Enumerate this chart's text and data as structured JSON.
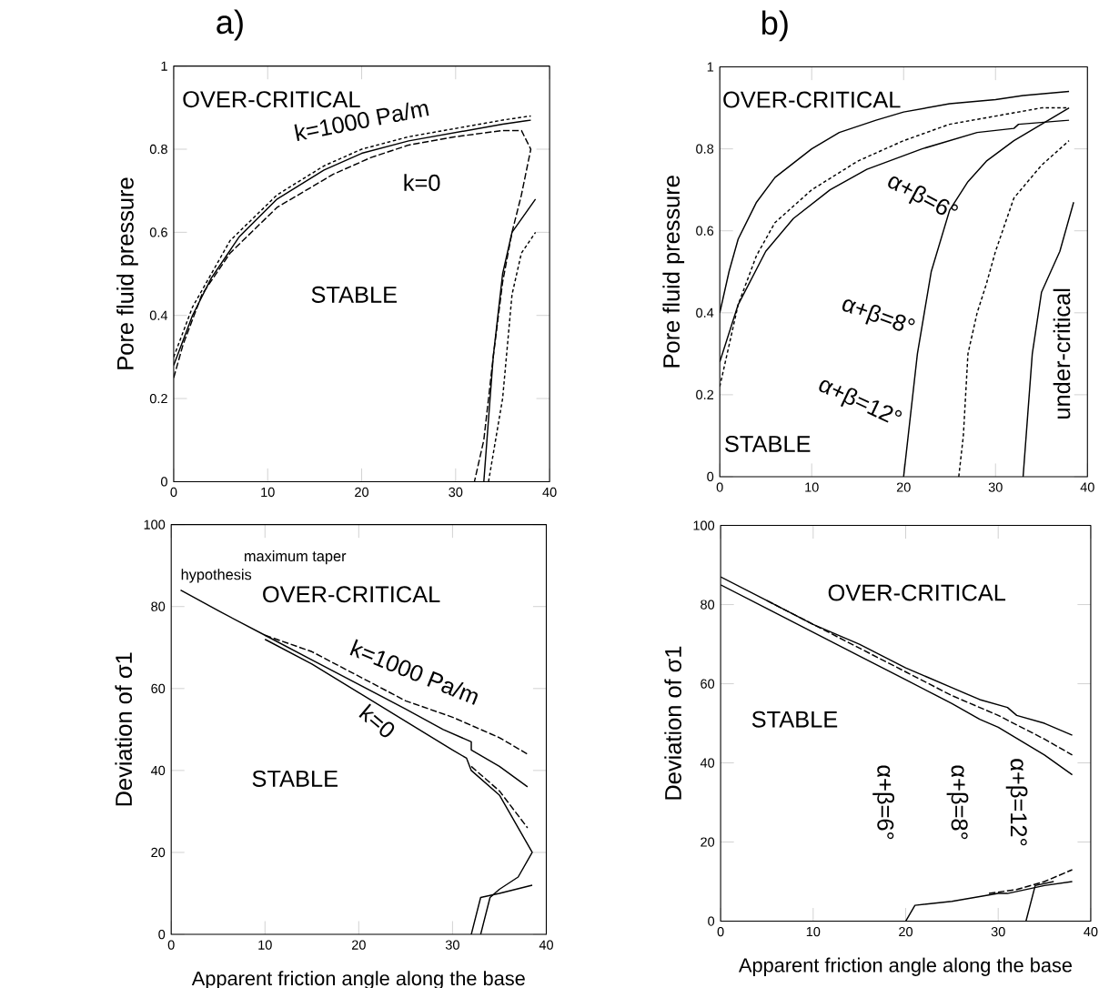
{
  "chart_data": [
    {
      "type": "line",
      "title": "a)",
      "ylabel": "Pore fluid pressure",
      "xlim": [
        0,
        40
      ],
      "ylim": [
        0,
        1
      ],
      "xticks": [
        0,
        10,
        20,
        30,
        40
      ],
      "yticks": [
        0,
        0.2,
        0.4,
        0.6,
        0.8,
        1
      ],
      "series": [
        {
          "color": "#000000",
          "line_style": "solid",
          "x": [
            0,
            2,
            4,
            7,
            11,
            16,
            20,
            25,
            30,
            35,
            38
          ],
          "values": [
            0.28,
            0.4,
            0.49,
            0.59,
            0.68,
            0.75,
            0.79,
            0.82,
            0.84,
            0.86,
            0.87
          ]
        },
        {
          "color": "#000000",
          "line_style": "dotted",
          "x": [
            0,
            2,
            4,
            6,
            11,
            16,
            20,
            25,
            30,
            35,
            38
          ],
          "values": [
            0.3,
            0.42,
            0.5,
            0.58,
            0.69,
            0.76,
            0.8,
            0.83,
            0.85,
            0.87,
            0.88
          ]
        },
        {
          "color": "#000000",
          "line_style": "dashed",
          "x": [
            0,
            1,
            3,
            6,
            11,
            17,
            21,
            25,
            30,
            35,
            37,
            38,
            37,
            36,
            35,
            34,
            33,
            32
          ],
          "values": [
            0.25,
            0.33,
            0.45,
            0.55,
            0.66,
            0.74,
            0.78,
            0.81,
            0.83,
            0.845,
            0.845,
            0.8,
            0.69,
            0.6,
            0.48,
            0.3,
            0.1,
            0
          ]
        },
        {
          "color": "#000000",
          "line_style": "solid",
          "x": [
            33,
            34,
            35,
            36,
            38.5
          ],
          "values": [
            0,
            0.3,
            0.5,
            0.6,
            0.68
          ]
        },
        {
          "color": "#000000",
          "line_style": "dotted",
          "x": [
            33.5,
            35,
            36,
            37,
            38.5
          ],
          "values": [
            0,
            0.2,
            0.45,
            0.55,
            0.6
          ]
        }
      ],
      "annotations": [
        "OVER-CRITICAL",
        "k=1000 Pa/m",
        "k=0",
        "STABLE"
      ]
    },
    {
      "type": "line",
      "title": "b)",
      "ylabel": "Pore fluid pressure",
      "xlim": [
        0,
        40
      ],
      "ylim": [
        0,
        1
      ],
      "xticks": [
        0,
        10,
        20,
        30,
        40
      ],
      "yticks": [
        0,
        0.2,
        0.4,
        0.6,
        0.8,
        1
      ],
      "series": [
        {
          "color": "#000000",
          "line_style": "solid",
          "x": [
            0,
            1,
            2,
            4,
            6,
            10,
            13,
            17,
            20,
            25,
            30,
            33,
            38
          ],
          "values": [
            0.4,
            0.5,
            0.58,
            0.67,
            0.73,
            0.8,
            0.84,
            0.87,
            0.89,
            0.91,
            0.92,
            0.93,
            0.94
          ]
        },
        {
          "color": "#000000",
          "line_style": "dotted",
          "x": [
            0,
            1,
            2,
            4,
            6,
            10,
            15,
            20,
            25,
            30,
            35,
            38
          ],
          "values": [
            0.22,
            0.32,
            0.42,
            0.54,
            0.62,
            0.7,
            0.77,
            0.82,
            0.86,
            0.88,
            0.9,
            0.9
          ]
        },
        {
          "color": "#000000",
          "line_style": "solid",
          "x": [
            0,
            2,
            5,
            8,
            12,
            16,
            22,
            28,
            32,
            32.5,
            38
          ],
          "values": [
            0.28,
            0.42,
            0.55,
            0.63,
            0.7,
            0.75,
            0.8,
            0.84,
            0.85,
            0.86,
            0.87
          ]
        },
        {
          "color": "#000000",
          "line_style": "solid",
          "x": [
            20,
            20.5,
            21.5,
            23,
            25,
            27,
            29,
            32,
            35,
            38
          ],
          "values": [
            0,
            0.1,
            0.3,
            0.5,
            0.65,
            0.72,
            0.77,
            0.82,
            0.86,
            0.9
          ]
        },
        {
          "color": "#000000",
          "line_style": "dotted",
          "x": [
            26,
            26.5,
            27,
            28,
            29,
            30,
            32,
            35,
            38
          ],
          "values": [
            0,
            0.1,
            0.3,
            0.4,
            0.47,
            0.55,
            0.68,
            0.76,
            0.82
          ]
        },
        {
          "color": "#000000",
          "line_style": "solid",
          "x": [
            33,
            33.5,
            34,
            35,
            37,
            38.5
          ],
          "values": [
            0,
            0.15,
            0.3,
            0.45,
            0.55,
            0.67
          ]
        }
      ],
      "annotations": [
        "OVER-CRITICAL",
        "α+β=6°",
        "α+β=8°",
        "α+β=12°",
        "STABLE",
        "under-critical"
      ]
    },
    {
      "type": "line",
      "ylabel": "Deviation of σ1",
      "xlabel": "Apparent friction angle along the base",
      "xlim": [
        0,
        40
      ],
      "ylim": [
        0,
        100
      ],
      "xticks": [
        0,
        10,
        20,
        30,
        40
      ],
      "yticks": [
        0,
        20,
        40,
        60,
        80,
        100
      ],
      "series": [
        {
          "color": "#000000",
          "line_style": "solid",
          "x": [
            1,
            5,
            10,
            15,
            20,
            25,
            29,
            32,
            32,
            35,
            38
          ],
          "values": [
            84,
            79,
            73,
            67,
            61,
            55,
            50,
            47,
            45,
            41,
            36
          ]
        },
        {
          "color": "#000000",
          "line_style": "dashed",
          "x": [
            10,
            15,
            20,
            25,
            30,
            32,
            35,
            38
          ],
          "values": [
            73,
            69,
            63,
            57,
            53,
            51,
            48,
            44
          ]
        },
        {
          "color": "#000000",
          "line_style": "solid",
          "x": [
            10,
            15,
            20,
            25,
            30,
            31.5,
            32,
            35,
            36,
            37,
            38.5,
            37,
            35,
            34,
            33
          ],
          "values": [
            72,
            66,
            59,
            52,
            45,
            43,
            40,
            34,
            30,
            26,
            20,
            14,
            11,
            9,
            0
          ]
        },
        {
          "color": "#000000",
          "line_style": "dashed",
          "x": [
            32,
            35,
            38
          ],
          "values": [
            41,
            35,
            26
          ]
        },
        {
          "color": "#000000",
          "line_style": "solid",
          "x": [
            32,
            33,
            35,
            38.5
          ],
          "values": [
            0,
            9,
            10,
            12
          ]
        }
      ],
      "annotations": [
        "maximum taper",
        "hypothesis",
        "OVER-CRITICAL",
        "k=1000 Pa/m",
        "k=0",
        "STABLE"
      ]
    },
    {
      "type": "line",
      "ylabel": "Deviation of σ1",
      "xlabel": "Apparent friction angle along the base",
      "xlim": [
        0,
        40
      ],
      "ylim": [
        0,
        100
      ],
      "xticks": [
        0,
        10,
        20,
        30,
        40
      ],
      "yticks": [
        0,
        20,
        40,
        60,
        80,
        100
      ],
      "series": [
        {
          "color": "#000000",
          "line_style": "solid",
          "x": [
            0,
            5,
            10,
            15,
            20,
            25,
            28,
            31,
            32,
            35,
            38
          ],
          "values": [
            87,
            81,
            75,
            70,
            64,
            59,
            56,
            54,
            52,
            50,
            47
          ]
        },
        {
          "color": "#000000",
          "line_style": "solid",
          "x": [
            0,
            5,
            10,
            15,
            20,
            25,
            28,
            30,
            35,
            38
          ],
          "values": [
            85,
            79,
            73,
            67,
            61,
            55,
            51,
            49,
            42,
            37
          ]
        },
        {
          "color": "#000000",
          "line_style": "dashed",
          "x": [
            5,
            10,
            15,
            20,
            25,
            30,
            35,
            38
          ],
          "values": [
            81,
            75,
            69,
            63,
            57,
            52,
            46,
            42
          ]
        },
        {
          "color": "#000000",
          "line_style": "solid",
          "x": [
            20,
            21,
            25,
            30,
            31,
            35,
            38
          ],
          "values": [
            0,
            4,
            5,
            7,
            7,
            9,
            10
          ]
        },
        {
          "color": "#000000",
          "line_style": "dashed",
          "x": [
            29,
            32,
            35,
            38
          ],
          "values": [
            7,
            8,
            10,
            13
          ]
        },
        {
          "color": "#000000",
          "line_style": "solid",
          "x": [
            33,
            34,
            36
          ],
          "values": [
            0,
            9,
            10
          ]
        }
      ],
      "annotations": [
        "OVER-CRITICAL",
        "STABLE",
        "α+β=6°",
        "α+β=8°",
        "α+β=12°"
      ]
    }
  ]
}
